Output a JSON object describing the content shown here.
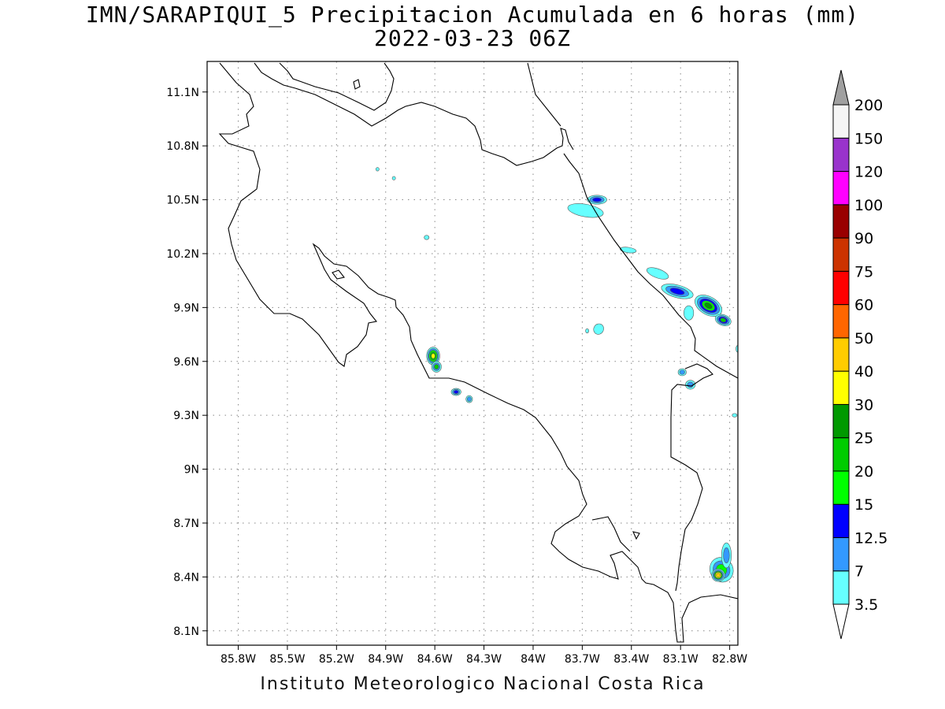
{
  "title": {
    "line1": "IMN/SARAPIQUI_5 Precipitacion Acumulada en 6 horas (mm)",
    "line2": "2022-03-23 06Z"
  },
  "footer": "Instituto Meteorologico Nacional Costa Rica",
  "map": {
    "projection": "lat-lon",
    "lon_range": [
      -85.99,
      -82.75
    ],
    "lat_range": [
      8.02,
      11.27
    ],
    "grid": "dotted",
    "lon_ticks": [
      {
        "value": -85.8,
        "label": "85.8W"
      },
      {
        "value": -85.5,
        "label": "85.5W"
      },
      {
        "value": -85.2,
        "label": "85.2W"
      },
      {
        "value": -84.9,
        "label": "84.9W"
      },
      {
        "value": -84.6,
        "label": "84.6W"
      },
      {
        "value": -84.3,
        "label": "84.3W"
      },
      {
        "value": -84.0,
        "label": "84W"
      },
      {
        "value": -83.7,
        "label": "83.7W"
      },
      {
        "value": -83.4,
        "label": "83.4W"
      },
      {
        "value": -83.1,
        "label": "83.1W"
      },
      {
        "value": -82.8,
        "label": "82.8W"
      }
    ],
    "lat_ticks": [
      {
        "value": 8.1,
        "label": "8.1N"
      },
      {
        "value": 8.4,
        "label": "8.4N"
      },
      {
        "value": 8.7,
        "label": "8.7N"
      },
      {
        "value": 9.0,
        "label": "9N"
      },
      {
        "value": 9.3,
        "label": "9.3N"
      },
      {
        "value": 9.6,
        "label": "9.6N"
      },
      {
        "value": 9.9,
        "label": "9.9N"
      },
      {
        "value": 10.2,
        "label": "10.2N"
      },
      {
        "value": 10.5,
        "label": "10.5N"
      },
      {
        "value": 10.8,
        "label": "10.8N"
      },
      {
        "value": 11.1,
        "label": "11.1N"
      }
    ]
  },
  "colorbar": {
    "arrow_top_color": "#a0a0a0",
    "arrow_bottom_color": "#ffffff",
    "levels": [
      "3.5",
      "7",
      "12.5",
      "15",
      "20",
      "25",
      "30",
      "40",
      "50",
      "60",
      "75",
      "90",
      "100",
      "120",
      "150",
      "200"
    ],
    "colors": [
      "#66ffff",
      "#3399ff",
      "#0000ff",
      "#00ff00",
      "#00cc00",
      "#009900",
      "#ffff00",
      "#ffcc00",
      "#ff6600",
      "#ff0000",
      "#cc3300",
      "#990000",
      "#ff00ff",
      "#9933cc",
      "#f5f5f5"
    ]
  },
  "precip_cells": [
    {
      "lon": -84.61,
      "lat": 9.63,
      "rx": 0.04,
      "ry": 0.05,
      "levels": [
        0,
        1,
        3,
        4,
        6
      ],
      "rot": 0
    },
    {
      "lon": -84.59,
      "lat": 9.57,
      "rx": 0.03,
      "ry": 0.03,
      "levels": [
        0,
        1,
        4
      ],
      "rot": 0
    },
    {
      "lon": -84.47,
      "lat": 9.43,
      "rx": 0.03,
      "ry": 0.02,
      "levels": [
        0,
        1,
        2
      ],
      "rot": 0
    },
    {
      "lon": -84.39,
      "lat": 9.39,
      "rx": 0.02,
      "ry": 0.02,
      "levels": [
        0,
        1
      ],
      "rot": 0
    },
    {
      "lon": -83.68,
      "lat": 10.44,
      "rx": 0.11,
      "ry": 0.035,
      "levels": [
        0
      ],
      "rot": 10
    },
    {
      "lon": -83.61,
      "lat": 10.5,
      "rx": 0.06,
      "ry": 0.025,
      "levels": [
        0,
        1,
        2
      ],
      "rot": 0
    },
    {
      "lon": -83.42,
      "lat": 10.22,
      "rx": 0.05,
      "ry": 0.015,
      "levels": [
        0
      ],
      "rot": 8
    },
    {
      "lon": -83.24,
      "lat": 10.09,
      "rx": 0.07,
      "ry": 0.025,
      "levels": [
        0
      ],
      "rot": 20
    },
    {
      "lon": -83.12,
      "lat": 9.99,
      "rx": 0.1,
      "ry": 0.035,
      "levels": [
        0,
        1,
        2
      ],
      "rot": 15
    },
    {
      "lon": -82.93,
      "lat": 9.91,
      "rx": 0.09,
      "ry": 0.05,
      "levels": [
        0,
        1,
        2,
        3,
        5
      ],
      "rot": 30
    },
    {
      "lon": -82.84,
      "lat": 9.83,
      "rx": 0.05,
      "ry": 0.03,
      "levels": [
        0,
        1,
        2,
        4
      ],
      "rot": 20
    },
    {
      "lon": -83.05,
      "lat": 9.87,
      "rx": 0.03,
      "ry": 0.04,
      "levels": [
        0
      ],
      "rot": 0
    },
    {
      "lon": -83.6,
      "lat": 9.78,
      "rx": 0.03,
      "ry": 0.03,
      "levels": [
        0
      ],
      "rot": 30
    },
    {
      "lon": -83.09,
      "lat": 9.54,
      "rx": 0.025,
      "ry": 0.02,
      "levels": [
        0,
        1
      ],
      "rot": 0
    },
    {
      "lon": -83.04,
      "lat": 9.47,
      "rx": 0.03,
      "ry": 0.025,
      "levels": [
        0,
        1
      ],
      "rot": 0
    },
    {
      "lon": -82.85,
      "lat": 8.44,
      "rx": 0.07,
      "ry": 0.07,
      "levels": [
        0,
        1,
        3
      ],
      "rot": -30
    },
    {
      "lon": -82.82,
      "lat": 8.52,
      "rx": 0.03,
      "ry": 0.07,
      "levels": [
        0,
        1
      ],
      "rot": 0
    },
    {
      "lon": -82.87,
      "lat": 8.41,
      "rx": 0.04,
      "ry": 0.035,
      "levels": [
        0,
        1,
        4,
        6,
        7
      ],
      "rot": 0
    },
    {
      "lon": -84.95,
      "lat": 10.67,
      "rx": 0.01,
      "ry": 0.01,
      "levels": [
        0
      ],
      "rot": 0
    },
    {
      "lon": -84.85,
      "lat": 10.62,
      "rx": 0.01,
      "ry": 0.01,
      "levels": [
        0
      ],
      "rot": 0
    },
    {
      "lon": -84.65,
      "lat": 10.29,
      "rx": 0.015,
      "ry": 0.012,
      "levels": [
        0
      ],
      "rot": 0
    },
    {
      "lon": -83.67,
      "lat": 9.77,
      "rx": 0.01,
      "ry": 0.012,
      "levels": [
        0
      ],
      "rot": 0
    },
    {
      "lon": -82.77,
      "lat": 9.3,
      "rx": 0.015,
      "ry": 0.01,
      "levels": [
        0
      ],
      "rot": 0
    },
    {
      "lon": -82.75,
      "lat": 9.67,
      "rx": 0.012,
      "ry": 0.02,
      "levels": [
        0
      ],
      "rot": 0
    }
  ]
}
